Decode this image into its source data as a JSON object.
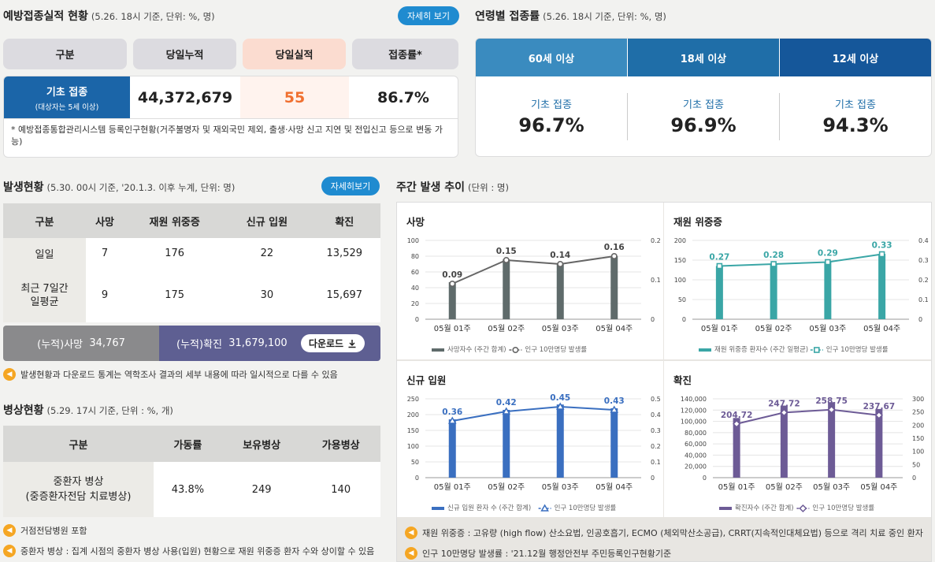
{
  "vaccine": {
    "title": "예방접종실적 현황",
    "sub": "(5.26. 18시 기준, 단위: %, 명)",
    "more": "자세히 보기",
    "headers": [
      "구분",
      "당일누적",
      "당일실적",
      "접종률*"
    ],
    "row_label": "기초 접종",
    "row_sub": "(대상자는 5세 이상)",
    "cumulative": "44,372,679",
    "today": "55",
    "rate": "86.7%",
    "note": "* 예방접종통합관리시스템 등록인구현황(거주불명자 및 재외국민 제외, 출생·사망 신고 지연 및 전입신고 등으로 변동 가능)"
  },
  "age": {
    "title": "연령별 접종률",
    "sub": "(5.26. 18시 기준, 단위: %, 명)",
    "groups": [
      {
        "label": "60세 이상",
        "kind": "기초 접종",
        "value": "96.7%",
        "color": "#3a8bbf"
      },
      {
        "label": "18세 이상",
        "kind": "기초 접종",
        "value": "96.9%",
        "color": "#1f6ea8"
      },
      {
        "label": "12세 이상",
        "kind": "기초 접종",
        "value": "94.3%",
        "color": "#15579a"
      }
    ]
  },
  "occur": {
    "title": "발생현황",
    "sub": "(5.30. 00시 기준, '20.1.3. 이후 누계, 단위: 명)",
    "more": "자세히보기",
    "headers": [
      "구분",
      "사망",
      "재원 위중증",
      "신규 입원",
      "확진"
    ],
    "rows": [
      {
        "label": "일일",
        "values": [
          "7",
          "176",
          "22",
          "13,529"
        ]
      },
      {
        "label": "최근 7일간\n일평균",
        "values": [
          "9",
          "175",
          "30",
          "15,697"
        ]
      }
    ],
    "cum_death_label": "(누적)사망",
    "cum_death": "34,767",
    "cum_conf_label": "(누적)확진",
    "cum_conf": "31,679,100",
    "download": "다운로드",
    "note": "발생현황과 다운로드 통계는 역학조사 결과의 세부 내용에 따라 일시적으로 다를 수 있음"
  },
  "beds": {
    "title": "병상현황",
    "sub": "(5.29. 17시 기준, 단위 : %, 개)",
    "headers": [
      "구분",
      "가동률",
      "보유병상",
      "가용병상"
    ],
    "row_label": "중환자 병상\n(중증환자전담 치료병상)",
    "values": [
      "43.8%",
      "249",
      "140"
    ],
    "notes": [
      "거점전담병원 포함",
      "중환자 병상 : 집계 시점의 중환자 병상 사용(입원) 현황으로 재원 위중증 환자 수와 상이할 수 있음"
    ]
  },
  "weekly": {
    "title": "주간 발생 추이",
    "sub": "(단위 : 명)",
    "notes": [
      "재원 위중증 : 고유량 (high flow) 산소요법, 인공호흡기, ECMO (체외막산소공급), CRRT(지속적인대체요법) 등으로 격리 치료 중인 환자",
      "인구 10만명당 발생률 : '21.12월 행정안전부 주민등록인구현황기준"
    ]
  },
  "chart_data": [
    {
      "type": "bar",
      "title": "사망",
      "categories": [
        "05월 01주",
        "05월 02주",
        "05월 03주",
        "05월 04주"
      ],
      "series": [
        {
          "name": "사망자수 (주간 합계)",
          "values": [
            47,
            76,
            71,
            80
          ]
        },
        {
          "name": "인구 10만명당 발생률",
          "values": [
            0.09,
            0.15,
            0.14,
            0.16
          ]
        }
      ],
      "ylim": [
        0,
        100
      ],
      "yticks": [
        "0",
        "20",
        "40",
        "60",
        "80",
        "100"
      ],
      "y2lim": [
        0,
        0.2
      ],
      "y2ticks": [
        "0",
        "0.1",
        "0.2"
      ],
      "bar_color": "#5f6b6b",
      "line_color": "#666666",
      "marker": "circle"
    },
    {
      "type": "bar",
      "title": "재원 위중증",
      "categories": [
        "05월 01주",
        "05월 02주",
        "05월 03주",
        "05월 04주"
      ],
      "series": [
        {
          "name": "재원 위중증 환자수 (주간 일평균)",
          "values": [
            135,
            140,
            146,
            166
          ]
        },
        {
          "name": "인구 10만명당 발생률",
          "values": [
            0.27,
            0.28,
            0.29,
            0.33
          ]
        }
      ],
      "ylim": [
        0,
        200
      ],
      "yticks": [
        "0",
        "50",
        "100",
        "150",
        "200"
      ],
      "y2lim": [
        0,
        0.4
      ],
      "y2ticks": [
        "0",
        "0.1",
        "0.2",
        "0.3",
        "0.4"
      ],
      "bar_color": "#3aa6a6",
      "line_color": "#3aa6a6",
      "marker": "square"
    },
    {
      "type": "bar",
      "title": "신규 입원",
      "categories": [
        "05월 01주",
        "05월 02주",
        "05월 03주",
        "05월 04주"
      ],
      "series": [
        {
          "name": "신규 입원 환자 수 (주간 합계)",
          "values": [
            185,
            215,
            232,
            220
          ]
        },
        {
          "name": "인구 10만명당 발생률",
          "values": [
            0.36,
            0.42,
            0.45,
            0.43
          ]
        }
      ],
      "ylim": [
        0,
        250
      ],
      "yticks": [
        "0",
        "50",
        "100",
        "150",
        "200",
        "250"
      ],
      "y2lim": [
        0,
        0.5
      ],
      "y2ticks": [
        "0",
        "0.1",
        "0.2",
        "0.3",
        "0.4",
        "0.5"
      ],
      "bar_color": "#3a6fc0",
      "line_color": "#3a6fc0",
      "marker": "triangle"
    },
    {
      "type": "bar",
      "title": "확진",
      "categories": [
        "05월 01주",
        "05월 02주",
        "05월 03주",
        "05월 04주"
      ],
      "series": [
        {
          "name": "확진자수 (주간 합계)",
          "values": [
            106000,
            128000,
            134000,
            122000
          ]
        },
        {
          "name": "인구 10만명당 발생률",
          "values": [
            204.72,
            247.72,
            258.75,
            237.67
          ]
        }
      ],
      "ylim": [
        0,
        140000
      ],
      "yticks": [
        "0",
        "20,000",
        "40,000",
        "60,000",
        "80,000",
        "100,000",
        "120,000",
        "140,000"
      ],
      "y2lim": [
        0,
        300
      ],
      "y2ticks": [
        "0",
        "50",
        "100",
        "150",
        "200",
        "250",
        "300"
      ],
      "bar_color": "#6d5b96",
      "line_color": "#6d5b96",
      "marker": "diamond"
    }
  ]
}
